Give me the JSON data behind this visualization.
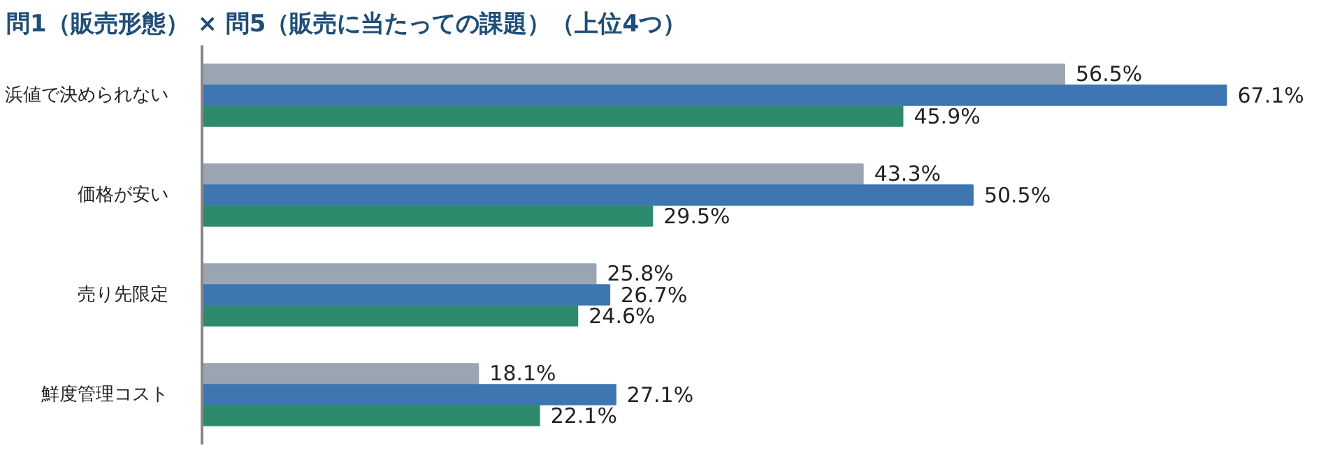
{
  "chart_data": {
    "type": "bar",
    "orientation": "horizontal",
    "title": "問1（販売形態） × 問5（販売に当たっての課題）（上位4つ）",
    "categories": [
      "浜値で決められない",
      "価格が安い",
      "売り先限定",
      "鮮度管理コスト"
    ],
    "series": [
      {
        "color": "#9aa5b1",
        "values": [
          56.5,
          43.3,
          25.8,
          18.1
        ],
        "value_labels": [
          "56.5%",
          "43.3%",
          "25.8%",
          "18.1%"
        ]
      },
      {
        "color": "#3d76b1",
        "values": [
          67.1,
          50.5,
          26.7,
          27.1
        ],
        "value_labels": [
          "67.1%",
          "50.5%",
          "26.7%",
          "27.1%"
        ]
      },
      {
        "color": "#2e8a6c",
        "values": [
          45.9,
          29.5,
          24.6,
          22.1
        ],
        "value_labels": [
          "45.9%",
          "29.5%",
          "24.6%",
          "22.1%"
        ]
      }
    ],
    "grid": false
  }
}
